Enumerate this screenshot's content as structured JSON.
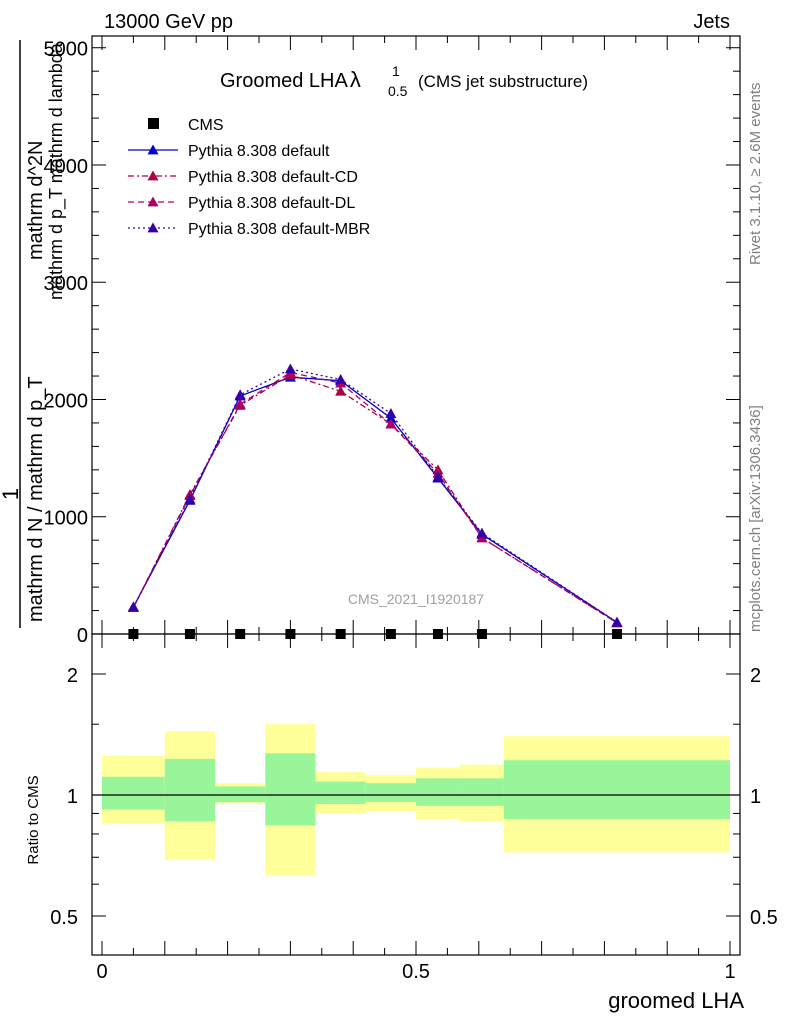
{
  "header": {
    "left": "13000 GeV pp",
    "right": "Jets"
  },
  "side_text": {
    "rivet": "Rivet 3.1.10, ≥ 2.6M events",
    "mcplots": "mcplots.cern.ch [arXiv:1306.3436]"
  },
  "colors": {
    "pythia_default": "#0000cc",
    "pythia_cd": "#aa0044",
    "pythia_dl": "#aa0066",
    "pythia_mbr": "#3300aa",
    "band_inner": "#99f599",
    "band_outer": "#ffff99"
  },
  "chart_data": [
    {
      "type": "line",
      "title": "Groomed LHA",
      "title_symbol": "λ",
      "title_superscript": "1",
      "title_subscript": "0.5",
      "title_note": "(CMS jet substructure)",
      "ylabel_top": "1",
      "ylabel_num": "mathrm d N",
      "ylabel_den": "mathrm d N / mathrm d p_T",
      "ylabel_full_num": "mathrm d^2N",
      "ylabel_full_den": "mathrm d p_T mathrm d lambda",
      "ylabel_suffix": "T",
      "watermark": "CMS_2021_I1920187",
      "xlim": [
        0,
        1
      ],
      "ylim": [
        0,
        5100
      ],
      "yticks": [
        0,
        1000,
        2000,
        3000,
        4000,
        5000
      ],
      "x": [
        0.05,
        0.14,
        0.22,
        0.3,
        0.38,
        0.46,
        0.535,
        0.605,
        0.82
      ],
      "legend_position": "top-left",
      "series": [
        {
          "name": "CMS",
          "marker": "square",
          "values": [
            0,
            0,
            0,
            0,
            0,
            0,
            0,
            0,
            0
          ]
        },
        {
          "name": "Pythia 8.308 default",
          "marker": "triangle",
          "dash": "solid",
          "values": [
            230,
            1140,
            2030,
            2190,
            2160,
            1840,
            1330,
            850,
            100
          ]
        },
        {
          "name": "Pythia 8.308 default-CD",
          "marker": "triangle",
          "dash": "dashdot",
          "values": [
            225,
            1190,
            1950,
            2210,
            2070,
            1790,
            1400,
            820,
            95
          ]
        },
        {
          "name": "Pythia 8.308 default-DL",
          "marker": "triangle",
          "dash": "dashed",
          "values": [
            225,
            1180,
            1960,
            2230,
            2140,
            1790,
            1370,
            820,
            95
          ]
        },
        {
          "name": "Pythia 8.308 default-MBR",
          "marker": "triangle",
          "dash": "dotted",
          "values": [
            230,
            1150,
            2040,
            2260,
            2170,
            1880,
            1340,
            860,
            100
          ]
        }
      ]
    },
    {
      "type": "area",
      "ylabel": "Ratio to CMS",
      "xlabel": "groomed LHA",
      "xlim": [
        0,
        1
      ],
      "ylim": [
        0.35,
        2.3
      ],
      "yticks": [
        0.5,
        1,
        2
      ],
      "ytick_labels": [
        "0.5",
        "1",
        "2"
      ],
      "xticks": [
        0,
        0.5,
        1
      ],
      "xtick_labels": [
        "0",
        "0.5",
        "1"
      ],
      "reference_line": 1,
      "bins": [
        {
          "lo": 0.0,
          "hi": 0.1,
          "inner": [
            0.92,
            1.11
          ],
          "outer": [
            0.85,
            1.25
          ]
        },
        {
          "lo": 0.1,
          "hi": 0.18,
          "inner": [
            0.86,
            1.23
          ],
          "outer": [
            0.69,
            1.44
          ]
        },
        {
          "lo": 0.18,
          "hi": 0.26,
          "inner": [
            0.96,
            1.05
          ],
          "outer": [
            0.95,
            1.07
          ]
        },
        {
          "lo": 0.26,
          "hi": 0.34,
          "inner": [
            0.84,
            1.27
          ],
          "outer": [
            0.63,
            1.5
          ]
        },
        {
          "lo": 0.34,
          "hi": 0.42,
          "inner": [
            0.95,
            1.08
          ],
          "outer": [
            0.9,
            1.14
          ]
        },
        {
          "lo": 0.42,
          "hi": 0.5,
          "inner": [
            0.96,
            1.07
          ],
          "outer": [
            0.91,
            1.12
          ]
        },
        {
          "lo": 0.5,
          "hi": 0.57,
          "inner": [
            0.94,
            1.1
          ],
          "outer": [
            0.87,
            1.17
          ]
        },
        {
          "lo": 0.57,
          "hi": 0.64,
          "inner": [
            0.94,
            1.1
          ],
          "outer": [
            0.86,
            1.19
          ]
        },
        {
          "lo": 0.64,
          "hi": 1.0,
          "inner": [
            0.87,
            1.22
          ],
          "outer": [
            0.72,
            1.4
          ]
        }
      ]
    }
  ]
}
